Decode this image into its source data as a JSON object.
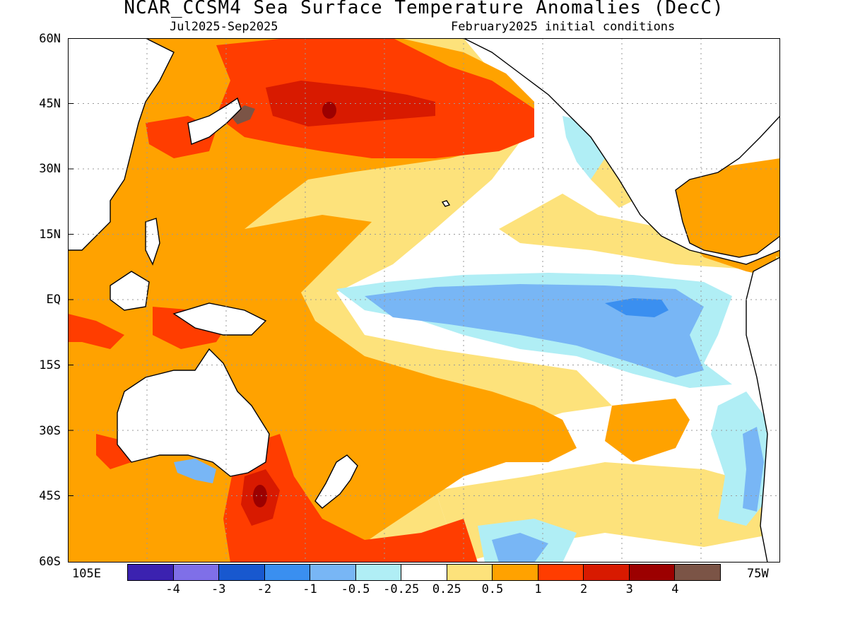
{
  "header": {
    "title": "NCAR_CCSM4 Sea Surface Temperature Anomalies (DecC)",
    "period": "Jul2025-Sep2025",
    "init": "February2025 initial conditions"
  },
  "axes": {
    "lat_labels": [
      "60N",
      "45N",
      "30N",
      "15N",
      "EQ",
      "15S",
      "30S",
      "45S",
      "60S"
    ],
    "lon_left": "105E",
    "lon_right": "75W"
  },
  "legend": {
    "colors": [
      "#3b22b0",
      "#7f6fe8",
      "#1858cf",
      "#3a8ff0",
      "#78b6f5",
      "#b0eef5",
      "#ffffff",
      "#fde27b",
      "#ffa200",
      "#ff3d00",
      "#d81a00",
      "#9c0000",
      "#7b5446"
    ],
    "labels": [
      "-4",
      "-3",
      "-2",
      "-1",
      "-0.5",
      "-0.25",
      "0.25",
      "0.5",
      "1",
      "2",
      "3",
      "4"
    ]
  },
  "colors": {
    "neutral": "#ffffff",
    "weak_warm": "#fde27b",
    "warm": "#ffa200",
    "strong_warm": "#ff3d00",
    "very_warm": "#d81a00",
    "extreme_warm": "#9c0000",
    "brown": "#7b5446",
    "weak_cool": "#b0eef5",
    "cool": "#78b6f5",
    "strong_cool": "#3a8ff0",
    "land_outline": "#000000",
    "grid": "#9a9a9a"
  }
}
